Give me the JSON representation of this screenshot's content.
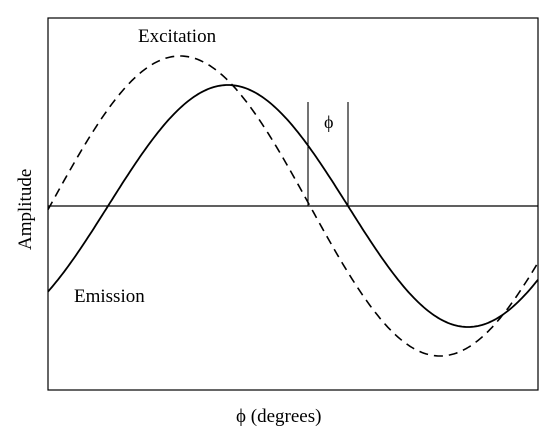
{
  "diagram": {
    "labels": {
      "excitation": "Excitation",
      "emission": "Emission",
      "phase_shift": "ϕ",
      "y_axis": "Amplitude",
      "x_axis": "ϕ (degrees)"
    },
    "curves": [
      {
        "name": "Excitation",
        "style": "dashed"
      },
      {
        "name": "Emission",
        "style": "solid"
      }
    ]
  }
}
